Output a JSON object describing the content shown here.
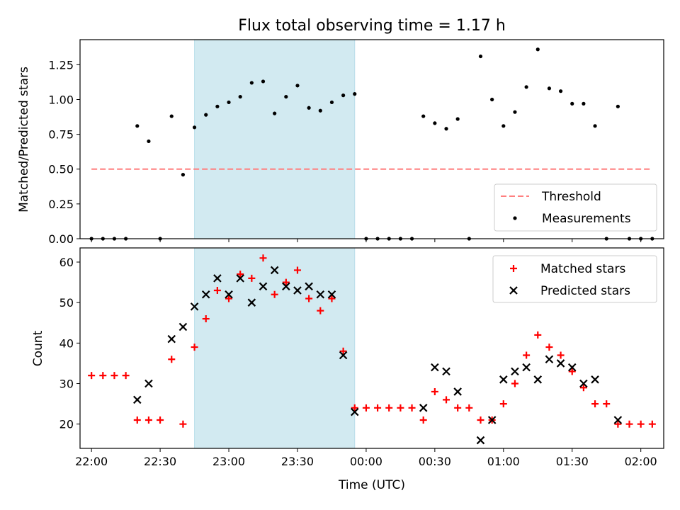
{
  "chart_data": [
    {
      "type": "scatter",
      "title": "Flux total observing time = 1.17 h",
      "xlabel": "",
      "ylabel": "Matched/Predicted stars",
      "ylim": [
        0,
        1.43
      ],
      "yticks": [
        "0.00",
        "0.25",
        "0.50",
        "0.75",
        "1.00",
        "1.25"
      ],
      "ytick_values": [
        0,
        0.25,
        0.5,
        0.75,
        1.0,
        1.25
      ],
      "grid": false,
      "legend_position": "bottom-right",
      "series": [
        {
          "name": "Threshold",
          "kind": "line",
          "color": "#ff7f7f",
          "x": [
            "22:00",
            "02:05"
          ],
          "y": [
            0.5,
            0.5
          ]
        },
        {
          "name": "Measurements",
          "kind": "points",
          "color": "#000000",
          "x": [
            "22:00",
            "22:05",
            "22:10",
            "22:15",
            "22:20",
            "22:25",
            "22:30",
            "22:35",
            "22:40",
            "22:45",
            "22:50",
            "22:55",
            "23:00",
            "23:05",
            "23:10",
            "23:15",
            "23:20",
            "23:25",
            "23:30",
            "23:35",
            "23:40",
            "23:45",
            "23:50",
            "23:55",
            "00:00",
            "00:05",
            "00:10",
            "00:15",
            "00:20",
            "00:25",
            "00:30",
            "00:35",
            "00:40",
            "00:45",
            "00:50",
            "00:55",
            "01:00",
            "01:05",
            "01:10",
            "01:15",
            "01:20",
            "01:25",
            "01:30",
            "01:35",
            "01:40",
            "01:45",
            "01:50",
            "01:55",
            "02:00",
            "02:05"
          ],
          "y": [
            0,
            0,
            0,
            0,
            0.81,
            0.7,
            0,
            0.88,
            0.46,
            0.8,
            0.89,
            0.95,
            0.98,
            1.02,
            1.12,
            1.13,
            0.9,
            1.02,
            1.1,
            0.94,
            0.92,
            0.98,
            1.03,
            1.04,
            0,
            0,
            0,
            0,
            0,
            0.88,
            0.83,
            0.79,
            0.86,
            0,
            1.31,
            1.0,
            0.81,
            0.91,
            1.09,
            1.36,
            1.08,
            1.06,
            0.97,
            0.97,
            0.81,
            0,
            0.95,
            0,
            0,
            0
          ]
        }
      ]
    },
    {
      "type": "scatter",
      "title": "",
      "xlabel": "Time (UTC)",
      "ylabel": "Count",
      "ylim": [
        14,
        63.5
      ],
      "yticks": [
        "20",
        "30",
        "40",
        "50",
        "60"
      ],
      "ytick_values": [
        20,
        30,
        40,
        50,
        60
      ],
      "grid": false,
      "legend_position": "top-right",
      "series": [
        {
          "name": "Matched stars",
          "marker": "plus",
          "color": "#ff0000",
          "x": [
            "22:00",
            "22:05",
            "22:10",
            "22:15",
            "22:20",
            "22:25",
            "22:30",
            "22:35",
            "22:40",
            "22:45",
            "22:50",
            "22:55",
            "23:00",
            "23:05",
            "23:10",
            "23:15",
            "23:20",
            "23:25",
            "23:30",
            "23:35",
            "23:40",
            "23:45",
            "23:50",
            "23:55",
            "00:00",
            "00:05",
            "00:10",
            "00:15",
            "00:20",
            "00:25",
            "00:30",
            "00:35",
            "00:40",
            "00:45",
            "00:50",
            "00:55",
            "01:00",
            "01:05",
            "01:10",
            "01:15",
            "01:20",
            "01:25",
            "01:30",
            "01:35",
            "01:40",
            "01:45",
            "01:50",
            "01:55",
            "02:00",
            "02:05"
          ],
          "y": [
            32,
            32,
            32,
            32,
            21,
            21,
            21,
            36,
            20,
            39,
            46,
            53,
            51,
            57,
            56,
            61,
            52,
            55,
            58,
            51,
            48,
            51,
            38,
            24,
            24,
            24,
            24,
            24,
            24,
            21,
            28,
            26,
            24,
            24,
            21,
            21,
            25,
            30,
            37,
            42,
            39,
            37,
            33,
            29,
            25,
            25,
            20,
            20,
            20,
            20
          ]
        },
        {
          "name": "Predicted stars",
          "marker": "x",
          "color": "#000000",
          "x": [
            "22:20",
            "22:25",
            "22:35",
            "22:40",
            "22:45",
            "22:50",
            "22:55",
            "23:00",
            "23:05",
            "23:10",
            "23:15",
            "23:20",
            "23:25",
            "23:30",
            "23:35",
            "23:40",
            "23:45",
            "23:50",
            "23:55",
            "00:25",
            "00:30",
            "00:35",
            "00:40",
            "00:50",
            "00:55",
            "01:00",
            "01:05",
            "01:10",
            "01:15",
            "01:20",
            "01:25",
            "01:30",
            "01:35",
            "01:40",
            "01:50"
          ],
          "y": [
            26,
            30,
            41,
            44,
            49,
            52,
            56,
            52,
            56,
            50,
            54,
            58,
            54,
            53,
            54,
            52,
            52,
            37,
            23,
            24,
            34,
            33,
            28,
            16,
            21,
            31,
            33,
            34,
            31,
            36,
            35,
            34,
            30,
            31,
            21
          ]
        }
      ]
    }
  ],
  "shared_x": {
    "type": "time",
    "range": [
      "21:55",
      "02:10"
    ],
    "ticks": [
      "22:00",
      "22:30",
      "23:00",
      "23:30",
      "00:00",
      "00:30",
      "01:00",
      "01:30",
      "02:00"
    ]
  },
  "highlight_interval": {
    "start": "22:45",
    "end": "23:55",
    "color": "#add8e6"
  }
}
